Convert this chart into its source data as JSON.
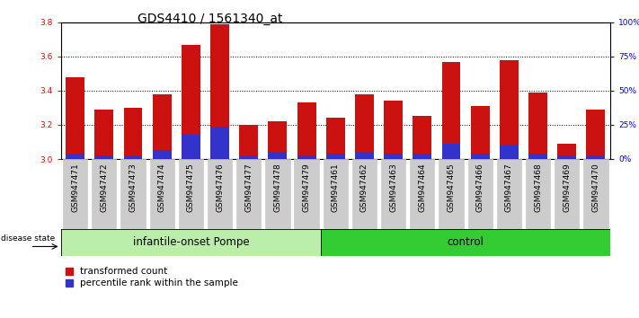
{
  "title": "GDS4410 / 1561340_at",
  "samples": [
    "GSM947471",
    "GSM947472",
    "GSM947473",
    "GSM947474",
    "GSM947475",
    "GSM947476",
    "GSM947477",
    "GSM947478",
    "GSM947479",
    "GSM947461",
    "GSM947462",
    "GSM947463",
    "GSM947464",
    "GSM947465",
    "GSM947466",
    "GSM947467",
    "GSM947468",
    "GSM947469",
    "GSM947470"
  ],
  "red_values": [
    3.48,
    3.29,
    3.3,
    3.38,
    3.67,
    3.79,
    3.2,
    3.22,
    3.33,
    3.24,
    3.38,
    3.34,
    3.25,
    3.57,
    3.31,
    3.58,
    3.39,
    3.09,
    3.29
  ],
  "blue_values": [
    3.03,
    3.02,
    3.02,
    3.05,
    3.14,
    3.19,
    3.02,
    3.04,
    3.02,
    3.03,
    3.04,
    3.03,
    3.03,
    3.09,
    3.03,
    3.08,
    3.03,
    3.02,
    3.02
  ],
  "ymin": 3.0,
  "ymax": 3.8,
  "yticks": [
    3.0,
    3.2,
    3.4,
    3.6,
    3.8
  ],
  "right_yticks": [
    0,
    25,
    50,
    75,
    100
  ],
  "right_yticklabels": [
    "0%",
    "25%",
    "50%",
    "75%",
    "100%"
  ],
  "group1_count": 9,
  "group1_label": "infantile-onset Pompe",
  "group2_label": "control",
  "disease_state_label": "disease state",
  "legend_red": "transformed count",
  "legend_blue": "percentile rank within the sample",
  "bar_color_red": "#CC1111",
  "bar_color_blue": "#3333CC",
  "group1_bg": "#BBEEAA",
  "group2_bg": "#33CC33",
  "tick_bg": "#CCCCCC",
  "title_fontsize": 10,
  "tick_fontsize": 6.5,
  "label_fontsize": 8,
  "group_fontsize": 8.5
}
